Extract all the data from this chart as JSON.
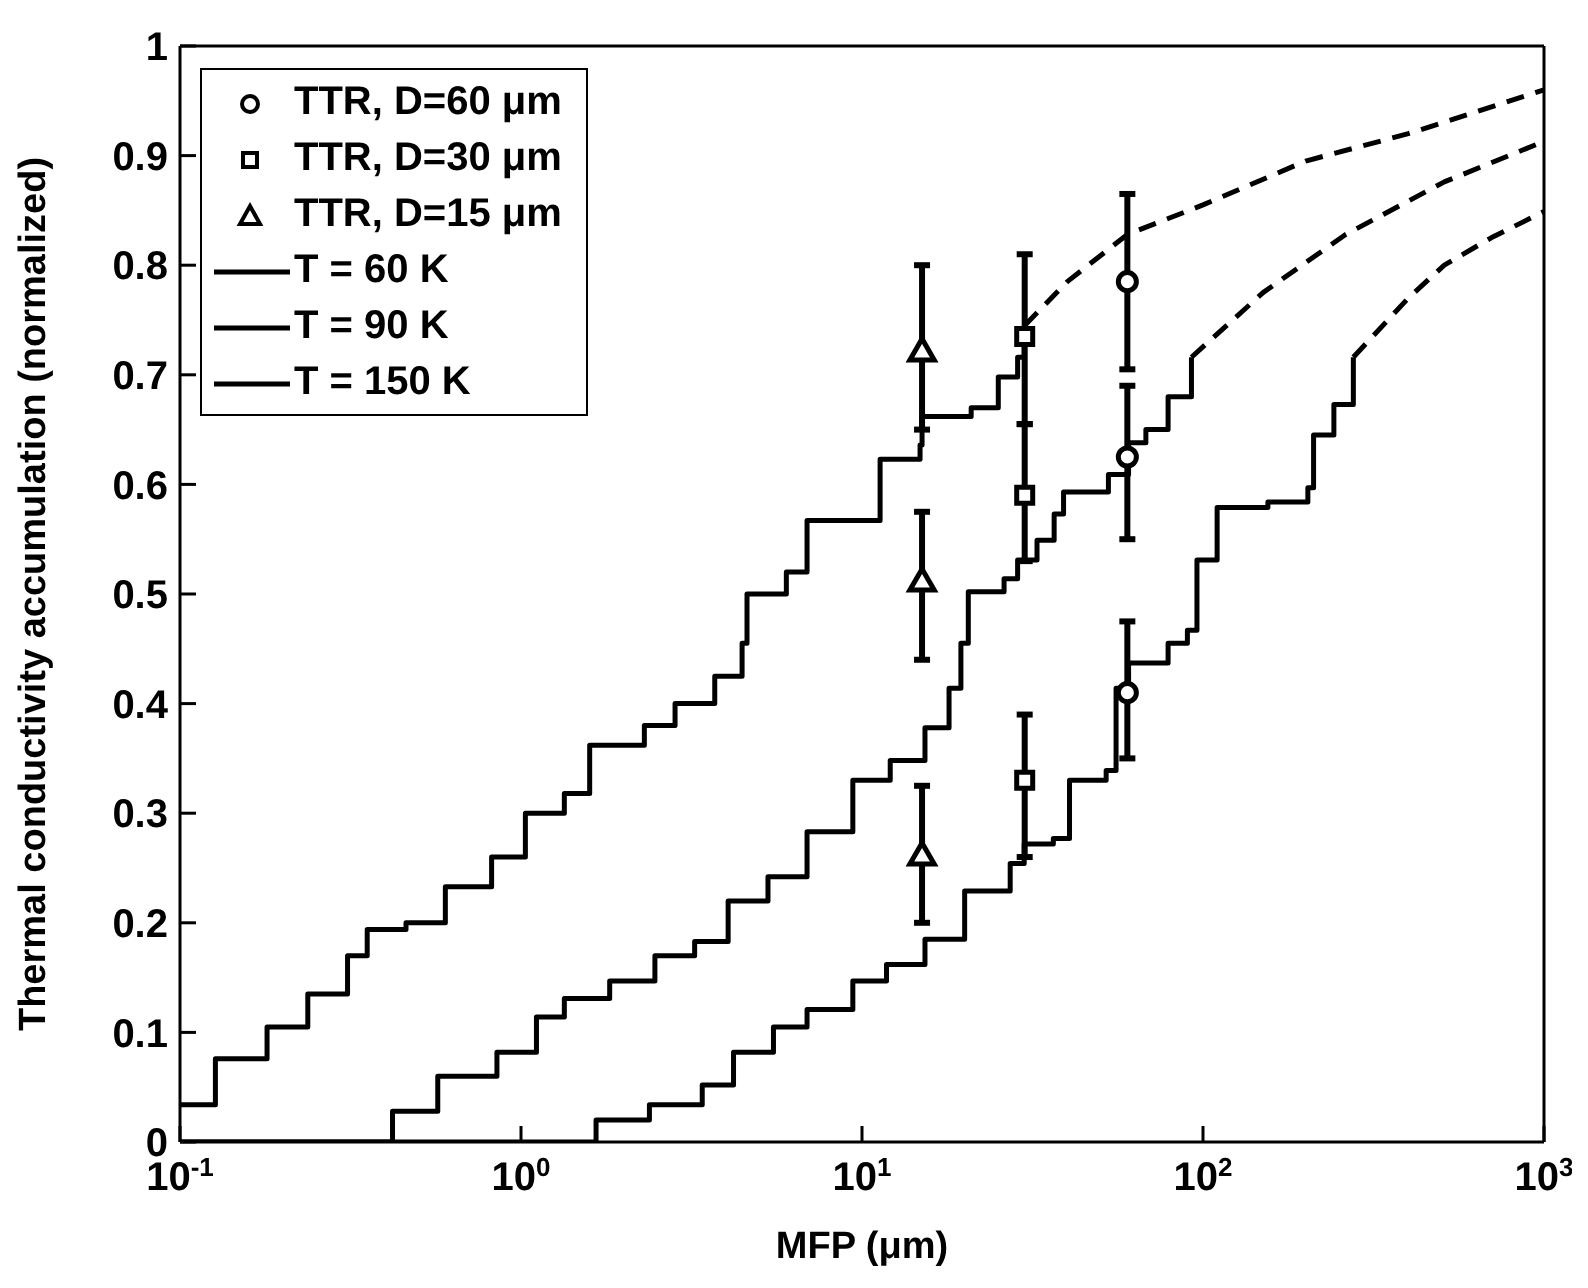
{
  "chart_data": {
    "type": "step",
    "xlabel": "MFP (μm)",
    "ylabel": "Thermal conductivity accumulation (normalized)",
    "log": "x",
    "xlim": [
      0.1,
      1000
    ],
    "xticks": [
      {
        "value": 0.1,
        "label": "10$^{-1}$"
      },
      {
        "value": 1,
        "label": "10$^{0}$"
      },
      {
        "value": 10,
        "label": "10$^{1}$"
      },
      {
        "value": 100,
        "label": "10$^{2}$"
      },
      {
        "value": 1000,
        "label": "10$^{3}$"
      }
    ],
    "ylim": [
      0,
      1
    ],
    "yticks": [
      0,
      0.1,
      0.2,
      0.3,
      0.4,
      0.5,
      0.6,
      0.7,
      0.8,
      0.9,
      1
    ],
    "grid": false,
    "legend": "top left",
    "series": [
      {
        "name": "TTR, D=60 μm",
        "type": "scatter",
        "marker": "circle",
        "color": "#000000",
        "x": [
          60,
          60,
          60
        ],
        "values": [
          0.785,
          0.625,
          0.41
        ],
        "errors": [
          [
            0.705,
            0.865
          ],
          [
            0.55,
            0.69
          ],
          [
            0.35,
            0.475
          ]
        ]
      },
      {
        "name": "TTR, D=30 μm",
        "type": "scatter",
        "marker": "square",
        "color": "#000000",
        "x": [
          30,
          30,
          30
        ],
        "values": [
          0.735,
          0.59,
          0.33
        ],
        "errors": [
          [
            0.655,
            0.81
          ],
          [
            0.53,
            0.655
          ],
          [
            0.26,
            0.39
          ]
        ]
      },
      {
        "name": "TTR, D=15 μm",
        "type": "scatter",
        "marker": "triangle",
        "color": "#000000",
        "x": [
          15,
          15,
          15
        ],
        "values": [
          0.72,
          0.51,
          0.26
        ],
        "errors": [
          [
            0.65,
            0.8
          ],
          [
            0.44,
            0.575
          ],
          [
            0.2,
            0.325
          ]
        ]
      },
      {
        "name": "T = 60 K",
        "line_style": "solid",
        "color": "#000000",
        "x": [
          0.1,
          0.127,
          0.18,
          0.237,
          0.31,
          0.354,
          0.46,
          0.6,
          0.82,
          1.03,
          1.34,
          1.59,
          2.3,
          2.83,
          3.7,
          4.45,
          4.6,
          6.0,
          6.9,
          9.25,
          11.3,
          14.8,
          15,
          20.9,
          25.1,
          28.6,
          29.9,
          30
        ],
        "values": [
          0.034,
          0.076,
          0.105,
          0.135,
          0.17,
          0.194,
          0.2,
          0.233,
          0.26,
          0.3,
          0.318,
          0.362,
          0.38,
          0.4,
          0.425,
          0.455,
          0.5,
          0.52,
          0.567,
          0.567,
          0.623,
          0.636,
          0.662,
          0.67,
          0.698,
          0.716,
          0.739,
          0.745
        ]
      },
      {
        "name": "T = 90 K",
        "line_style": "solid",
        "color": "#000000",
        "x": [
          0.1,
          0.29,
          0.42,
          0.57,
          0.85,
          1.11,
          1.34,
          1.82,
          2.47,
          3.23,
          4.05,
          5.3,
          6.9,
          9.4,
          12.1,
          15.3,
          18,
          19.5,
          20.5,
          26.1,
          28.6,
          32.6,
          36.6,
          39,
          52.8,
          60.5,
          68,
          79,
          92.5
        ],
        "values": [
          0,
          0,
          0.028,
          0.06,
          0.082,
          0.114,
          0.131,
          0.147,
          0.17,
          0.183,
          0.22,
          0.242,
          0.283,
          0.33,
          0.348,
          0.378,
          0.414,
          0.455,
          0.502,
          0.514,
          0.531,
          0.549,
          0.573,
          0.593,
          0.609,
          0.638,
          0.65,
          0.68,
          0.716
        ]
      },
      {
        "name": "T = 150 K",
        "line_style": "solid",
        "color": "#000000",
        "x": [
          0.1,
          1,
          1.66,
          2.38,
          3.4,
          4.2,
          5.5,
          6.9,
          9.4,
          11.8,
          15.3,
          20,
          27.2,
          29.9,
          36.4,
          40.6,
          52,
          55.6,
          60.5,
          79,
          90,
          96,
          110,
          155,
          203,
          211,
          242,
          276
        ],
        "values": [
          0,
          0,
          0.02,
          0.034,
          0.052,
          0.082,
          0.105,
          0.121,
          0.147,
          0.162,
          0.185,
          0.229,
          0.254,
          0.272,
          0.277,
          0.33,
          0.339,
          0.414,
          0.437,
          0.455,
          0.467,
          0.531,
          0.579,
          0.584,
          0.597,
          0.645,
          0.673,
          0.716
        ]
      },
      {
        "type": "line",
        "line_style": "dashed",
        "color": "#000000",
        "x": [
          30,
          40,
          60,
          100,
          200,
          400,
          1000
        ],
        "values": [
          0.745,
          0.785,
          0.828,
          0.855,
          0.895,
          0.92,
          0.96
        ]
      },
      {
        "type": "line",
        "line_style": "dashed",
        "color": "#000000",
        "x": [
          92.5,
          150,
          262,
          510,
          1000
        ],
        "values": [
          0.716,
          0.775,
          0.828,
          0.876,
          0.913
        ]
      },
      {
        "type": "line",
        "line_style": "dashed",
        "color": "#000000",
        "x": [
          276,
          400,
          510,
          700,
          1000
        ],
        "values": [
          0.716,
          0.77,
          0.8,
          0.825,
          0.849
        ]
      }
    ]
  }
}
